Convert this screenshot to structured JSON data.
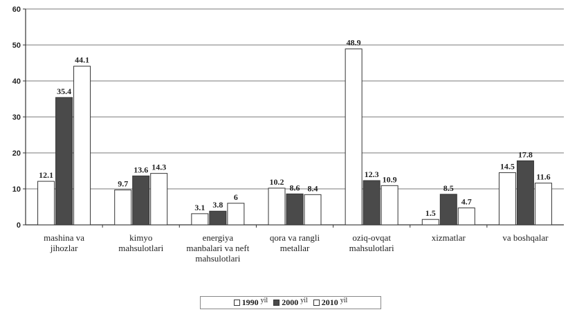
{
  "chart_data": {
    "type": "bar",
    "categories": [
      [
        "mashina va",
        "jihozlar"
      ],
      [
        "kimyo",
        "mahsulotlari"
      ],
      [
        "energiya",
        "manbalari va neft",
        "mahsulotlari"
      ],
      [
        "qora va rangli",
        "metallar"
      ],
      [
        "oziq-ovqat",
        "mahsulotlari"
      ],
      [
        "xizmatlar"
      ],
      [
        "va boshqalar"
      ]
    ],
    "series": [
      {
        "name": "1990",
        "unit": "yil",
        "color": "#ffffff",
        "values": [
          12.1,
          9.7,
          3.1,
          10.2,
          48.9,
          1.5,
          14.5
        ]
      },
      {
        "name": "2000",
        "unit": "yil",
        "color": "#4a4a4a",
        "values": [
          35.4,
          13.6,
          3.8,
          8.6,
          12.3,
          8.5,
          17.8
        ]
      },
      {
        "name": "2010",
        "unit": "yil",
        "color": "#ffffff",
        "values": [
          44.1,
          14.3,
          6.0,
          8.4,
          10.9,
          4.7,
          11.6
        ]
      }
    ],
    "data_labels": [
      [
        "12.1",
        "9.7",
        "3.1",
        "10.2",
        "48.9",
        "1.5",
        "14.5"
      ],
      [
        "35.4",
        "13.6",
        "3.8",
        "8.6",
        "12.3",
        "8.5",
        "17.8"
      ],
      [
        "44.1",
        "14.3",
        "6",
        "8.4",
        "10.9",
        "4.7",
        "11.6"
      ]
    ],
    "ylim": [
      0,
      60
    ],
    "yticks": [
      0,
      10,
      20,
      30,
      40,
      50,
      60
    ],
    "grid": true,
    "legend_position": "bottom-center",
    "title": "",
    "xlabel": "",
    "ylabel": ""
  }
}
